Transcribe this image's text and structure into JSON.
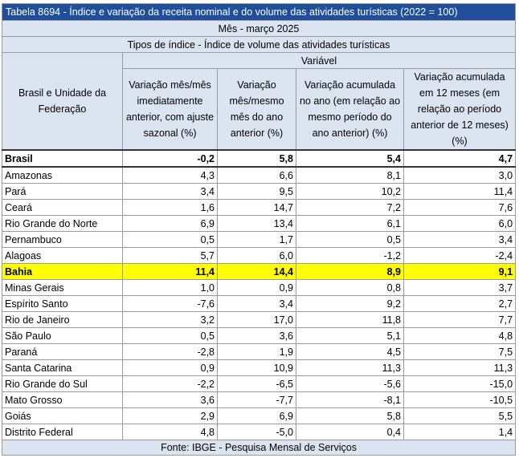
{
  "title": "Tabela 8694 - Índice e variação da receita nominal e do volume das atividades turísticas (2022 = 100)",
  "period": "Mês - março 2025",
  "index_type": "Tipos de índice - Índice de volume das atividades turísticas",
  "variable_label": "Variável",
  "row_header": "Brasil e Unidade da Federação",
  "columns": [
    "Variação mês/mês imediatamente anterior, com ajuste sazonal (%)",
    "Variação mês/mesmo mês do ano anterior (%)",
    "Variação acumulada no ano (em relação ao mesmo período do ano anterior) (%)",
    "Variação acumulada em 12 meses (em relação ao período anterior de 12 meses) (%)"
  ],
  "rows": [
    {
      "name": "Brasil",
      "values": [
        "-0,2",
        "5,8",
        "5,4",
        "4,7"
      ],
      "style": "brasil"
    },
    {
      "name": "Amazonas",
      "values": [
        "4,3",
        "6,6",
        "8,1",
        "3,0"
      ]
    },
    {
      "name": "Pará",
      "values": [
        "3,4",
        "9,5",
        "10,2",
        "11,4"
      ]
    },
    {
      "name": "Ceará",
      "values": [
        "1,6",
        "14,7",
        "7,2",
        "7,6"
      ]
    },
    {
      "name": "Rio Grande do Norte",
      "values": [
        "6,9",
        "13,4",
        "6,1",
        "6,0"
      ]
    },
    {
      "name": "Pernambuco",
      "values": [
        "0,5",
        "1,7",
        "0,5",
        "3,4"
      ]
    },
    {
      "name": "Alagoas",
      "values": [
        "5,7",
        "6,0",
        "-1,2",
        "-2,4"
      ]
    },
    {
      "name": "Bahia",
      "values": [
        "11,4",
        "14,4",
        "8,9",
        "9,1"
      ],
      "style": "hl"
    },
    {
      "name": "Minas Gerais",
      "values": [
        "1,0",
        "0,9",
        "0,8",
        "3,7"
      ]
    },
    {
      "name": "Espírito Santo",
      "values": [
        "-7,6",
        "3,4",
        "9,2",
        "2,7"
      ]
    },
    {
      "name": "Rio de Janeiro",
      "values": [
        "3,2",
        "17,0",
        "11,8",
        "7,7"
      ]
    },
    {
      "name": "São Paulo",
      "values": [
        "0,5",
        "3,6",
        "5,1",
        "4,8"
      ]
    },
    {
      "name": "Paraná",
      "values": [
        "-2,8",
        "1,9",
        "4,5",
        "7,5"
      ]
    },
    {
      "name": "Santa Catarina",
      "values": [
        "0,9",
        "10,9",
        "11,3",
        "11,3"
      ]
    },
    {
      "name": "Rio Grande do Sul",
      "values": [
        "-2,2",
        "-6,5",
        "-5,6",
        "-15,0"
      ]
    },
    {
      "name": "Mato Grosso",
      "values": [
        "3,6",
        "-7,7",
        "-8,1",
        "-10,5"
      ]
    },
    {
      "name": "Goiás",
      "values": [
        "2,9",
        "6,9",
        "5,8",
        "5,5"
      ]
    },
    {
      "name": "Distrito Federal",
      "values": [
        "4,8",
        "-5,0",
        "0,4",
        "1,4"
      ]
    }
  ],
  "source": "Fonte: IBGE - Pesquisa Mensal de Serviços",
  "colors": {
    "title_bg": "#1f4e9a",
    "header_bg": "#dbe5f1",
    "highlight": "#ffff00"
  }
}
